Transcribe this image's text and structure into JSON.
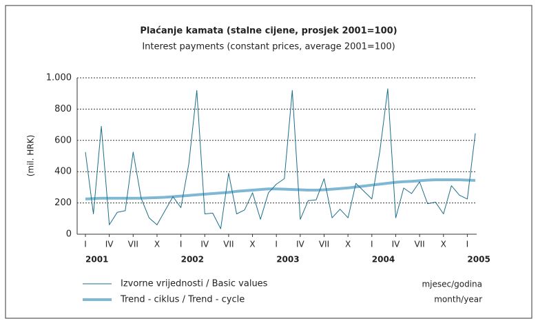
{
  "chart_data": {
    "type": "line",
    "title": "Plaćanje kamata (stalne cijene, prosjek 2001=100)",
    "subtitle": "Interest payments (constant prices, average 2001=100)",
    "y_label": "(mil. HRK)",
    "x_label": [
      "mjesec/godina",
      "month/year"
    ],
    "categories": [
      "I",
      null,
      null,
      "IV",
      null,
      null,
      "VII",
      null,
      null,
      "X",
      null,
      null,
      "I",
      null,
      null,
      "IV",
      null,
      null,
      "VII",
      null,
      null,
      "X",
      null,
      null,
      "I",
      null,
      null,
      "IV",
      null,
      null,
      "VII",
      null,
      null,
      "X",
      null,
      null,
      "I",
      null,
      null,
      "IV",
      null,
      null,
      "VII",
      null,
      null,
      "X",
      null,
      null,
      "I",
      null
    ],
    "years": [
      "2001",
      null,
      null,
      null,
      null,
      null,
      null,
      null,
      null,
      null,
      null,
      null,
      "2002",
      null,
      null,
      null,
      null,
      null,
      null,
      null,
      null,
      null,
      null,
      null,
      "2003",
      null,
      null,
      null,
      null,
      null,
      null,
      null,
      null,
      null,
      null,
      null,
      "2004",
      null,
      null,
      null,
      null,
      null,
      null,
      null,
      null,
      null,
      null,
      null,
      "2005",
      null
    ],
    "series": [
      {
        "name": "Izvorne vrijednosti / Basic values",
        "color": "#1a6e8a",
        "width": 1,
        "values": [
          525,
          130,
          690,
          60,
          140,
          150,
          525,
          230,
          105,
          60,
          150,
          240,
          170,
          450,
          920,
          130,
          135,
          35,
          390,
          130,
          155,
          265,
          95,
          265,
          320,
          355,
          920,
          95,
          215,
          220,
          355,
          105,
          160,
          105,
          325,
          275,
          225,
          530,
          930,
          105,
          295,
          260,
          335,
          195,
          205,
          130,
          310,
          250,
          225,
          645
        ]
      },
      {
        "name": "Trend - ciklus / Trend - cycle",
        "color": "#7fb8d4",
        "width": 4,
        "values": [
          225,
          228,
          230,
          230,
          230,
          230,
          230,
          230,
          232,
          234,
          236,
          240,
          244,
          248,
          252,
          256,
          260,
          264,
          268,
          274,
          278,
          282,
          286,
          290,
          290,
          288,
          286,
          284,
          282,
          282,
          284,
          288,
          292,
          296,
          302,
          308,
          314,
          320,
          326,
          332,
          336,
          338,
          342,
          346,
          348,
          348,
          348,
          348,
          346,
          344
        ]
      }
    ],
    "ylim": [
      0,
      1000
    ],
    "yticks": [
      0,
      200,
      400,
      600,
      800,
      {
        "value": 1000,
        "label": "1.000"
      }
    ],
    "grid": true
  }
}
